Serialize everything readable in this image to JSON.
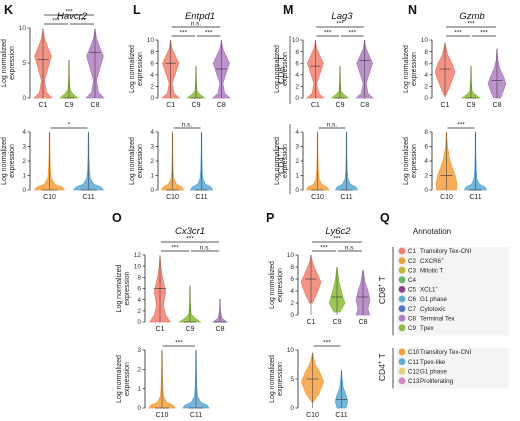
{
  "ylabel": "Log normalized expression",
  "ylabel_line1": "Log normalized",
  "ylabel_line2": "expression",
  "row_labels": {
    "cd8": "CD8",
    "cd4": "CD4",
    "plus": "+",
    "T": "T"
  },
  "panels": [
    {
      "letter": "K",
      "gene": "Havcr2"
    },
    {
      "letter": "L",
      "gene": "Entpd1"
    },
    {
      "letter": "M",
      "gene": "Lag3"
    },
    {
      "letter": "N",
      "gene": "Gzmb"
    },
    {
      "letter": "O",
      "gene": "Cx3cr1"
    },
    {
      "letter": "P",
      "gene": "Ly6c2"
    },
    {
      "letter": "Q",
      "gene": ""
    }
  ],
  "chart_data": [
    {
      "id": "K-top",
      "type": "violin",
      "title": "Havcr2",
      "ylabel": "Log normalized expression",
      "ylim": [
        0,
        10
      ],
      "yticks": [
        0,
        5,
        10
      ],
      "categories": [
        "C1",
        "C9",
        "C8"
      ],
      "series": [
        {
          "name": "C1",
          "color": "#f08070",
          "median": 5.5
        },
        {
          "name": "C9",
          "color": "#8bbd3a",
          "median": 0
        },
        {
          "name": "C8",
          "color": "#b07fc2",
          "median": 6.5
        }
      ],
      "significance": [
        {
          "from": "C1",
          "to": "C9",
          "label": "***"
        },
        {
          "from": "C9",
          "to": "C8",
          "label": "***"
        },
        {
          "from": "C1",
          "to": "C8",
          "label": "***"
        }
      ]
    },
    {
      "id": "L-top",
      "type": "violin",
      "title": "Entpd1",
      "ylabel": "Log normalized expression",
      "ylim": [
        0,
        10
      ],
      "yticks": [
        0,
        2,
        4,
        6,
        8,
        10
      ],
      "categories": [
        "C1",
        "C9",
        "C8"
      ],
      "series": [
        {
          "name": "C1",
          "color": "#f08070",
          "median": 6
        },
        {
          "name": "C9",
          "color": "#8bbd3a",
          "median": 0
        },
        {
          "name": "C8",
          "color": "#b07fc2",
          "median": 5
        }
      ],
      "significance": [
        {
          "from": "C1",
          "to": "C9",
          "label": "***"
        },
        {
          "from": "C9",
          "to": "C8",
          "label": "***"
        },
        {
          "from": "C1",
          "to": "C8",
          "label": "n.s."
        }
      ]
    },
    {
      "id": "M-top",
      "type": "violin",
      "title": "Lag3",
      "ylabel": "Log normalized expression",
      "ylim": [
        0,
        10
      ],
      "yticks": [
        0,
        2,
        4,
        6,
        8,
        10
      ],
      "categories": [
        "C1",
        "C9",
        "C8"
      ],
      "series": [
        {
          "name": "C1",
          "color": "#f08070",
          "median": 5.5
        },
        {
          "name": "C9",
          "color": "#8bbd3a",
          "median": 0
        },
        {
          "name": "C8",
          "color": "#b07fc2",
          "median": 6.5
        }
      ],
      "significance": [
        {
          "from": "C1",
          "to": "C9",
          "label": "***"
        },
        {
          "from": "C9",
          "to": "C8",
          "label": "***"
        },
        {
          "from": "C1",
          "to": "C8",
          "label": "***"
        }
      ]
    },
    {
      "id": "N-top",
      "type": "violin",
      "title": "Gzmb",
      "ylabel": "Log normalized expression",
      "ylim": [
        0,
        10
      ],
      "yticks": [
        0,
        2,
        4,
        6,
        8,
        10
      ],
      "categories": [
        "C1",
        "C9",
        "C8"
      ],
      "series": [
        {
          "name": "C1",
          "color": "#f08070",
          "median": 5
        },
        {
          "name": "C9",
          "color": "#8bbd3a",
          "median": 0
        },
        {
          "name": "C8",
          "color": "#b07fc2",
          "median": 3
        }
      ],
      "significance": [
        {
          "from": "C1",
          "to": "C9",
          "label": "***"
        },
        {
          "from": "C9",
          "to": "C8",
          "label": "***"
        },
        {
          "from": "C1",
          "to": "C8",
          "label": "***"
        }
      ]
    },
    {
      "id": "O-top",
      "type": "violin",
      "title": "Cx3cr1",
      "ylabel": "Log normalized expression",
      "ylim": [
        0,
        12
      ],
      "yticks": [
        0,
        2,
        4,
        6,
        8,
        10,
        12
      ],
      "categories": [
        "C1",
        "C9",
        "C8"
      ],
      "series": [
        {
          "name": "C1",
          "color": "#f08070",
          "median": 6
        },
        {
          "name": "C9",
          "color": "#8bbd3a",
          "median": 0
        },
        {
          "name": "C8",
          "color": "#b07fc2",
          "median": 0
        }
      ],
      "significance": [
        {
          "from": "C1",
          "to": "C9",
          "label": "***"
        },
        {
          "from": "C9",
          "to": "C8",
          "label": "n.s."
        },
        {
          "from": "C1",
          "to": "C8",
          "label": "***"
        }
      ]
    },
    {
      "id": "P-top",
      "type": "violin",
      "title": "Ly6c2",
      "ylabel": "Log normalized expression",
      "ylim": [
        0,
        10
      ],
      "yticks": [
        0,
        2,
        4,
        6,
        8,
        10
      ],
      "categories": [
        "C1",
        "C9",
        "C8"
      ],
      "series": [
        {
          "name": "C1",
          "color": "#f08070",
          "median": 6
        },
        {
          "name": "C9",
          "color": "#8bbd3a",
          "median": 3
        },
        {
          "name": "C8",
          "color": "#b07fc2",
          "median": 3
        }
      ],
      "significance": [
        {
          "from": "C1",
          "to": "C9",
          "label": "***"
        },
        {
          "from": "C9",
          "to": "C8",
          "label": "n.s."
        },
        {
          "from": "C1",
          "to": "C8",
          "label": "***"
        }
      ]
    },
    {
      "id": "K-bottom",
      "type": "violin",
      "title": "Havcr2",
      "ylabel": "Log normalized expression",
      "ylim": [
        0,
        4
      ],
      "yticks": [
        0,
        1,
        2,
        3,
        4
      ],
      "categories": [
        "C10",
        "C11"
      ],
      "series": [
        {
          "name": "C10",
          "color": "#f5a040",
          "median": 0
        },
        {
          "name": "C11",
          "color": "#5ea9d6",
          "median": 0
        }
      ],
      "significance": [
        {
          "from": "C10",
          "to": "C11",
          "label": "*"
        }
      ]
    },
    {
      "id": "L-bottom",
      "type": "violin",
      "title": "Entpd1",
      "ylabel": "Log normalized expression",
      "ylim": [
        0,
        4
      ],
      "yticks": [
        0,
        1,
        2,
        3,
        4
      ],
      "categories": [
        "C10",
        "C11"
      ],
      "series": [
        {
          "name": "C10",
          "color": "#f5a040",
          "median": 0
        },
        {
          "name": "C11",
          "color": "#5ea9d6",
          "median": 0
        }
      ],
      "significance": [
        {
          "from": "C10",
          "to": "C11",
          "label": "n.s."
        }
      ]
    },
    {
      "id": "M-bottom",
      "type": "violin",
      "title": "Lag3",
      "ylabel": "Log normalized expression",
      "ylim": [
        0,
        4
      ],
      "yticks": [
        0,
        1,
        2,
        3,
        4
      ],
      "categories": [
        "C10",
        "C11"
      ],
      "series": [
        {
          "name": "C10",
          "color": "#f5a040",
          "median": 0
        },
        {
          "name": "C11",
          "color": "#5ea9d6",
          "median": 0
        }
      ],
      "significance": [
        {
          "from": "C10",
          "to": "C11",
          "label": "n.s."
        }
      ]
    },
    {
      "id": "N-bottom",
      "type": "violin",
      "title": "Gzmb",
      "ylabel": "Log normalized expression",
      "ylim": [
        0,
        8
      ],
      "yticks": [
        0,
        2,
        4,
        6,
        8
      ],
      "categories": [
        "C10",
        "C11"
      ],
      "series": [
        {
          "name": "C10",
          "color": "#f5a040",
          "median": 2
        },
        {
          "name": "C11",
          "color": "#5ea9d6",
          "median": 0
        }
      ],
      "significance": [
        {
          "from": "C10",
          "to": "C11",
          "label": "***"
        }
      ]
    },
    {
      "id": "O-bottom",
      "type": "violin",
      "title": "Cx3cr1",
      "ylabel": "Log normalized expression",
      "ylim": [
        0,
        3
      ],
      "yticks": [
        0,
        1,
        2,
        3
      ],
      "categories": [
        "C10",
        "C11"
      ],
      "series": [
        {
          "name": "C10",
          "color": "#f5a040",
          "median": 0
        },
        {
          "name": "C11",
          "color": "#5ea9d6",
          "median": 0
        }
      ],
      "significance": [
        {
          "from": "C10",
          "to": "C11",
          "label": "***"
        }
      ]
    },
    {
      "id": "P-bottom",
      "type": "violin",
      "title": "Ly6c2",
      "ylabel": "Log normalized expression",
      "ylim": [
        0,
        10
      ],
      "yticks": [
        0,
        5,
        10
      ],
      "categories": [
        "C10",
        "C11"
      ],
      "series": [
        {
          "name": "C10",
          "color": "#f5a040",
          "median": 5
        },
        {
          "name": "C11",
          "color": "#5ea9d6",
          "median": 1.5
        }
      ],
      "significance": [
        {
          "from": "C10",
          "to": "C11",
          "label": "***"
        }
      ]
    }
  ],
  "annotation": {
    "title": "Annotation",
    "cd8_label": "CD8",
    "cd4_label": "CD4",
    "cd8": [
      {
        "code": "C1",
        "label": "Transitory Tex-CNI",
        "color": "#f08070"
      },
      {
        "code": "C2",
        "label": "CXCR6",
        "sup": "+",
        "color": "#e8a23a"
      },
      {
        "code": "C3",
        "label": "Mitotic T",
        "color": "#c4b42e"
      },
      {
        "code": "C4",
        "label": "",
        "color": "#67b86b"
      },
      {
        "code": "C5",
        "label": "XCL1",
        "sup": "+",
        "color": "#8a3f8c"
      },
      {
        "code": "C6",
        "label": "G1 phase",
        "color": "#5fa9d4"
      },
      {
        "code": "C7",
        "label": "Cytotoxic",
        "color": "#4f74c6"
      },
      {
        "code": "C8",
        "label": "Terminal Tex",
        "color": "#b07fc2"
      },
      {
        "code": "C9",
        "label": "Tpex",
        "color": "#8bbd3a"
      }
    ],
    "cd4": [
      {
        "code": "C10",
        "label": "Transitory Tex-CNI",
        "color": "#f5a040"
      },
      {
        "code": "C11",
        "label": "Tpex-like",
        "color": "#5ea9d6"
      },
      {
        "code": "C12",
        "label": "G1 phase",
        "color": "#e2d27a"
      },
      {
        "code": "C13",
        "label": "Proliferating",
        "color": "#d586c5"
      }
    ]
  }
}
